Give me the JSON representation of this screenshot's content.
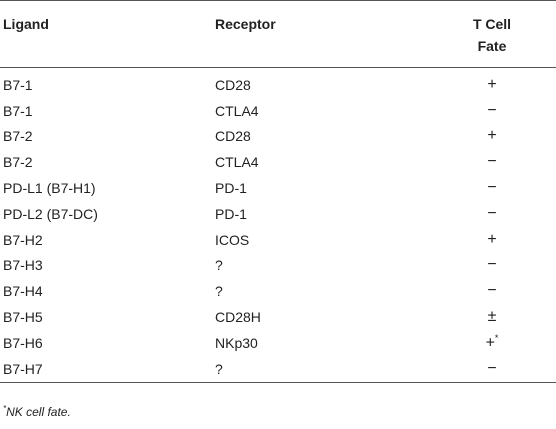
{
  "table": {
    "headers": {
      "ligand": "Ligand",
      "receptor": "Receptor",
      "fate_line1": "T Cell",
      "fate_line2": "Fate"
    },
    "rows": [
      {
        "ligand": "B7-1",
        "receptor": "CD28",
        "fate": "+",
        "fate_sup": ""
      },
      {
        "ligand": "B7-1",
        "receptor": "CTLA4",
        "fate": "−",
        "fate_sup": ""
      },
      {
        "ligand": "B7-2",
        "receptor": "CD28",
        "fate": "+",
        "fate_sup": ""
      },
      {
        "ligand": "B7-2",
        "receptor": "CTLA4",
        "fate": "−",
        "fate_sup": ""
      },
      {
        "ligand": "PD-L1 (B7-H1)",
        "receptor": "PD-1",
        "fate": "−",
        "fate_sup": ""
      },
      {
        "ligand": "PD-L2 (B7-DC)",
        "receptor": "PD-1",
        "fate": "−",
        "fate_sup": ""
      },
      {
        "ligand": "B7-H2",
        "receptor": "ICOS",
        "fate": "+",
        "fate_sup": ""
      },
      {
        "ligand": "B7-H3",
        "receptor": "?",
        "fate": "−",
        "fate_sup": ""
      },
      {
        "ligand": "B7-H4",
        "receptor": "?",
        "fate": "−",
        "fate_sup": ""
      },
      {
        "ligand": "B7-H5",
        "receptor": "CD28H",
        "fate": "±",
        "fate_sup": ""
      },
      {
        "ligand": "B7-H6",
        "receptor": "NKp30",
        "fate": "+",
        "fate_sup": "*"
      },
      {
        "ligand": "B7-H7",
        "receptor": "?",
        "fate": "−",
        "fate_sup": ""
      }
    ]
  },
  "footnote": {
    "marker": "*",
    "text": "NK cell fate."
  }
}
